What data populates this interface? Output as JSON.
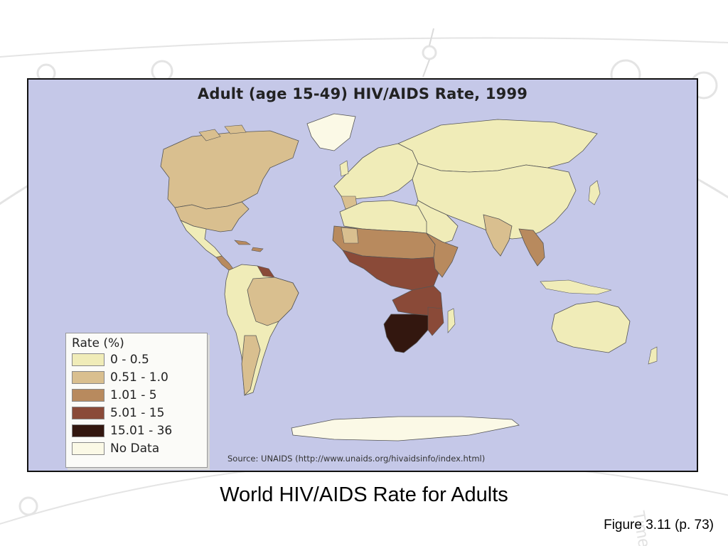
{
  "map": {
    "title": "Adult (age 15-49) HIV/AIDS Rate, 1999",
    "source": "Source: UNAIDS (http://www.unaids.org/hivaidsinfo/index.html)",
    "ocean_color": "#c5c8e8"
  },
  "legend": {
    "title": "Rate (%)",
    "items": [
      {
        "label": "0 - 0.5",
        "color": "#f0ecb8"
      },
      {
        "label": "0.51 - 1.0",
        "color": "#d9bf8f"
      },
      {
        "label": "1.01 - 5",
        "color": "#b88a5e"
      },
      {
        "label": "5.01 - 15",
        "color": "#8a4a38"
      },
      {
        "label": "15.01 - 36",
        "color": "#33170f"
      },
      {
        "label": "No Data",
        "color": "#fbf9e6"
      }
    ]
  },
  "caption": "World HIV/AIDS Rate for Adults",
  "figure_ref": "Figure 3.11 (p. 73)"
}
